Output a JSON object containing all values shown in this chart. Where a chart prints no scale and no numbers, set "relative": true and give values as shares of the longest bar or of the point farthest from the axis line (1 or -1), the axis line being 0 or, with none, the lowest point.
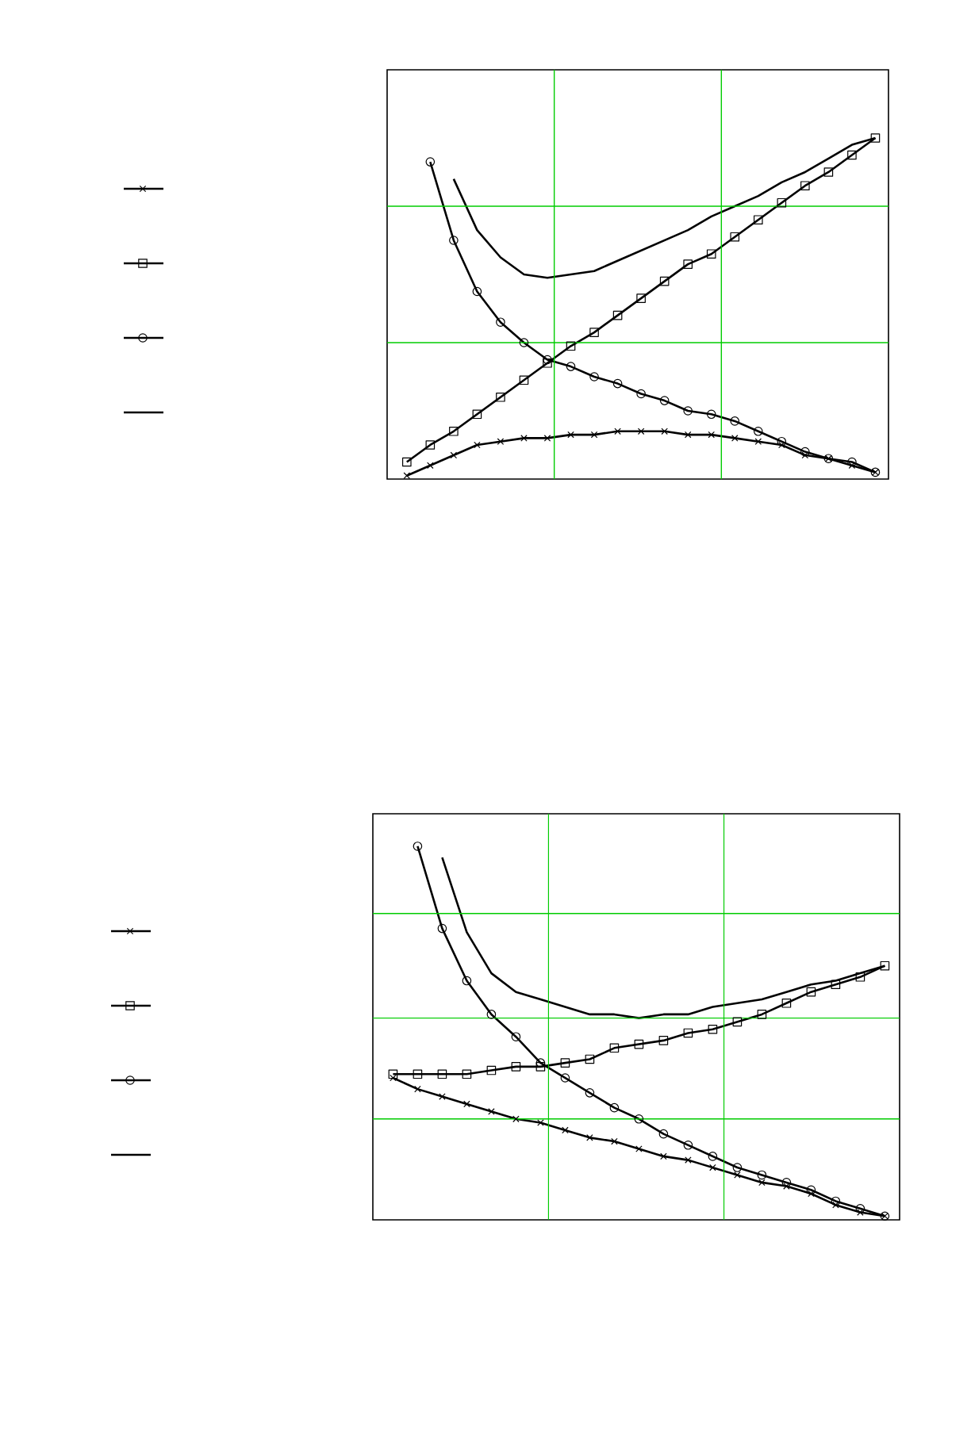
{
  "chart_data": [
    {
      "type": "line",
      "relative": true,
      "ref_lines": [
        {
          "axis": "y",
          "value": 0.4,
          "color": "#00cc00"
        },
        {
          "axis": "y",
          "value": 0.8,
          "color": "#00cc00"
        }
      ],
      "categories": [
        null,
        null,
        null,
        null,
        null,
        null,
        null,
        null,
        null,
        null,
        null,
        null,
        null,
        null,
        null,
        null,
        null,
        null,
        null,
        null,
        null
      ],
      "series": [
        {
          "color": "#000000",
          "marker": "cross",
          "values": [
            0.01,
            0.04,
            0.07,
            0.1,
            0.11,
            0.12,
            0.12,
            0.13,
            0.13,
            0.14,
            0.14,
            0.14,
            0.13,
            0.13,
            0.12,
            0.11,
            0.1,
            0.07,
            0.06,
            0.04,
            0.02
          ]
        },
        {
          "color": "#000000",
          "marker": "square",
          "values": [
            0.05,
            0.1,
            0.14,
            0.19,
            0.24,
            0.29,
            0.34,
            0.39,
            0.43,
            0.48,
            0.53,
            0.58,
            0.63,
            0.66,
            0.71,
            0.76,
            0.81,
            0.86,
            0.9,
            0.95,
            1.0
          ]
        },
        {
          "color": "#000000",
          "marker": "circle",
          "values": [
            null,
            0.93,
            0.7,
            0.55,
            0.46,
            0.4,
            0.35,
            0.33,
            0.3,
            0.28,
            0.25,
            0.23,
            0.2,
            0.19,
            0.17,
            0.14,
            0.11,
            0.08,
            0.06,
            0.05,
            0.02
          ]
        },
        {
          "color": "#000000",
          "marker": "none",
          "values": [
            null,
            null,
            0.88,
            0.73,
            0.65,
            0.6,
            0.59,
            0.6,
            0.61,
            0.64,
            0.67,
            0.7,
            0.73,
            0.77,
            0.8,
            0.83,
            0.87,
            0.9,
            0.94,
            0.98,
            1.0
          ]
        }
      ]
    },
    {
      "type": "line",
      "relative": true,
      "ref_lines": [
        {
          "axis": "y",
          "value": 0.27,
          "color": "#00cc00"
        },
        {
          "axis": "y",
          "value": 0.54,
          "color": "#00cc00"
        },
        {
          "axis": "y",
          "value": 0.82,
          "color": "#00cc00"
        }
      ],
      "categories": [
        null,
        null,
        null,
        null,
        null,
        null,
        null,
        null,
        null,
        null,
        null,
        null,
        null,
        null,
        null,
        null,
        null,
        null,
        null,
        null,
        null
      ],
      "series": [
        {
          "color": "#000000",
          "marker": "cross",
          "values": [
            0.38,
            0.35,
            0.33,
            0.31,
            0.29,
            0.27,
            0.26,
            0.24,
            0.22,
            0.21,
            0.19,
            0.17,
            0.16,
            0.14,
            0.12,
            0.1,
            0.09,
            0.07,
            0.04,
            0.02,
            0.01
          ]
        },
        {
          "color": "#000000",
          "marker": "square",
          "values": [
            0.39,
            0.39,
            0.39,
            0.39,
            0.4,
            0.41,
            0.41,
            0.42,
            0.43,
            0.46,
            0.47,
            0.48,
            0.5,
            0.51,
            0.53,
            0.55,
            0.58,
            0.61,
            0.63,
            0.65,
            0.68
          ]
        },
        {
          "color": "#000000",
          "marker": "circle",
          "values": [
            null,
            1.0,
            0.78,
            0.64,
            0.55,
            0.49,
            0.42,
            0.38,
            0.34,
            0.3,
            0.27,
            0.23,
            0.2,
            0.17,
            0.14,
            0.12,
            0.1,
            0.08,
            0.05,
            0.03,
            0.01
          ]
        },
        {
          "color": "#000000",
          "marker": "none",
          "values": [
            null,
            null,
            0.97,
            0.77,
            0.66,
            0.61,
            0.59,
            0.57,
            0.55,
            0.55,
            0.54,
            0.55,
            0.55,
            0.57,
            0.58,
            0.59,
            0.61,
            0.63,
            0.64,
            0.66,
            0.68
          ]
        }
      ]
    }
  ]
}
